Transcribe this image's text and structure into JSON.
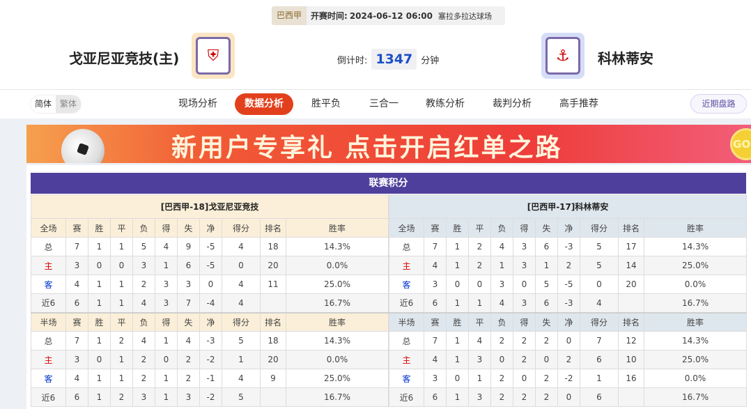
{
  "match": {
    "league": "巴西甲",
    "kickoff_label": "开赛时间:",
    "kickoff": "2024-06-12 06:00",
    "venue": "塞拉多拉达球场",
    "home": "戈亚尼亚竞技(主)",
    "away": "科林蒂安",
    "countdown_label": "倒计时:",
    "countdown": "1347",
    "countdown_unit": "分钟"
  },
  "nav": {
    "lang": [
      "简体",
      "繁体"
    ],
    "tabs": [
      "现场分析",
      "数据分析",
      "胜平负",
      "三合一",
      "教练分析",
      "裁判分析",
      "高手推荐"
    ],
    "active": "数据分析",
    "recent": "近期盘路"
  },
  "banner": {
    "text": "新用户专享礼  点击开启红单之路",
    "go": "GO>"
  },
  "standings": {
    "title": "联赛积分",
    "columns_full": [
      "全场",
      "赛",
      "胜",
      "平",
      "负",
      "得",
      "失",
      "净",
      "得分",
      "排名",
      "胜率"
    ],
    "columns_half": [
      "半场",
      "赛",
      "胜",
      "平",
      "负",
      "得",
      "失",
      "净",
      "得分",
      "排名",
      "胜率"
    ],
    "teams": [
      {
        "name": "[巴西甲-18]戈亚尼亚竞技",
        "full": [
          [
            "总",
            "7",
            "1",
            "1",
            "5",
            "4",
            "9",
            "-5",
            "4",
            "18",
            "14.3%"
          ],
          [
            "主",
            "3",
            "0",
            "0",
            "3",
            "1",
            "6",
            "-5",
            "0",
            "20",
            "0.0%"
          ],
          [
            "客",
            "4",
            "1",
            "1",
            "2",
            "3",
            "3",
            "0",
            "4",
            "11",
            "25.0%"
          ],
          [
            "近6",
            "6",
            "1",
            "1",
            "4",
            "3",
            "7",
            "-4",
            "4",
            "",
            "16.7%"
          ]
        ],
        "half": [
          [
            "总",
            "7",
            "1",
            "2",
            "4",
            "1",
            "4",
            "-3",
            "5",
            "18",
            "14.3%"
          ],
          [
            "主",
            "3",
            "0",
            "1",
            "2",
            "0",
            "2",
            "-2",
            "1",
            "20",
            "0.0%"
          ],
          [
            "客",
            "4",
            "1",
            "1",
            "2",
            "1",
            "2",
            "-1",
            "4",
            "9",
            "25.0%"
          ],
          [
            "近6",
            "6",
            "1",
            "2",
            "3",
            "1",
            "3",
            "-2",
            "5",
            "",
            "16.7%"
          ]
        ]
      },
      {
        "name": "[巴西甲-17]科林蒂安",
        "full": [
          [
            "总",
            "7",
            "1",
            "2",
            "4",
            "3",
            "6",
            "-3",
            "5",
            "17",
            "14.3%"
          ],
          [
            "主",
            "4",
            "1",
            "2",
            "1",
            "3",
            "1",
            "2",
            "5",
            "14",
            "25.0%"
          ],
          [
            "客",
            "3",
            "0",
            "0",
            "3",
            "0",
            "5",
            "-5",
            "0",
            "20",
            "0.0%"
          ],
          [
            "近6",
            "6",
            "1",
            "1",
            "4",
            "3",
            "6",
            "-3",
            "4",
            "",
            "16.7%"
          ]
        ],
        "half": [
          [
            "总",
            "7",
            "1",
            "4",
            "2",
            "2",
            "2",
            "0",
            "7",
            "12",
            "14.3%"
          ],
          [
            "主",
            "4",
            "1",
            "3",
            "0",
            "2",
            "0",
            "2",
            "6",
            "10",
            "25.0%"
          ],
          [
            "客",
            "3",
            "0",
            "1",
            "2",
            "0",
            "2",
            "-2",
            "1",
            "16",
            "0.0%"
          ],
          [
            "近6",
            "6",
            "1",
            "3",
            "2",
            "2",
            "2",
            "0",
            "6",
            "",
            "16.7%"
          ]
        ]
      }
    ]
  }
}
